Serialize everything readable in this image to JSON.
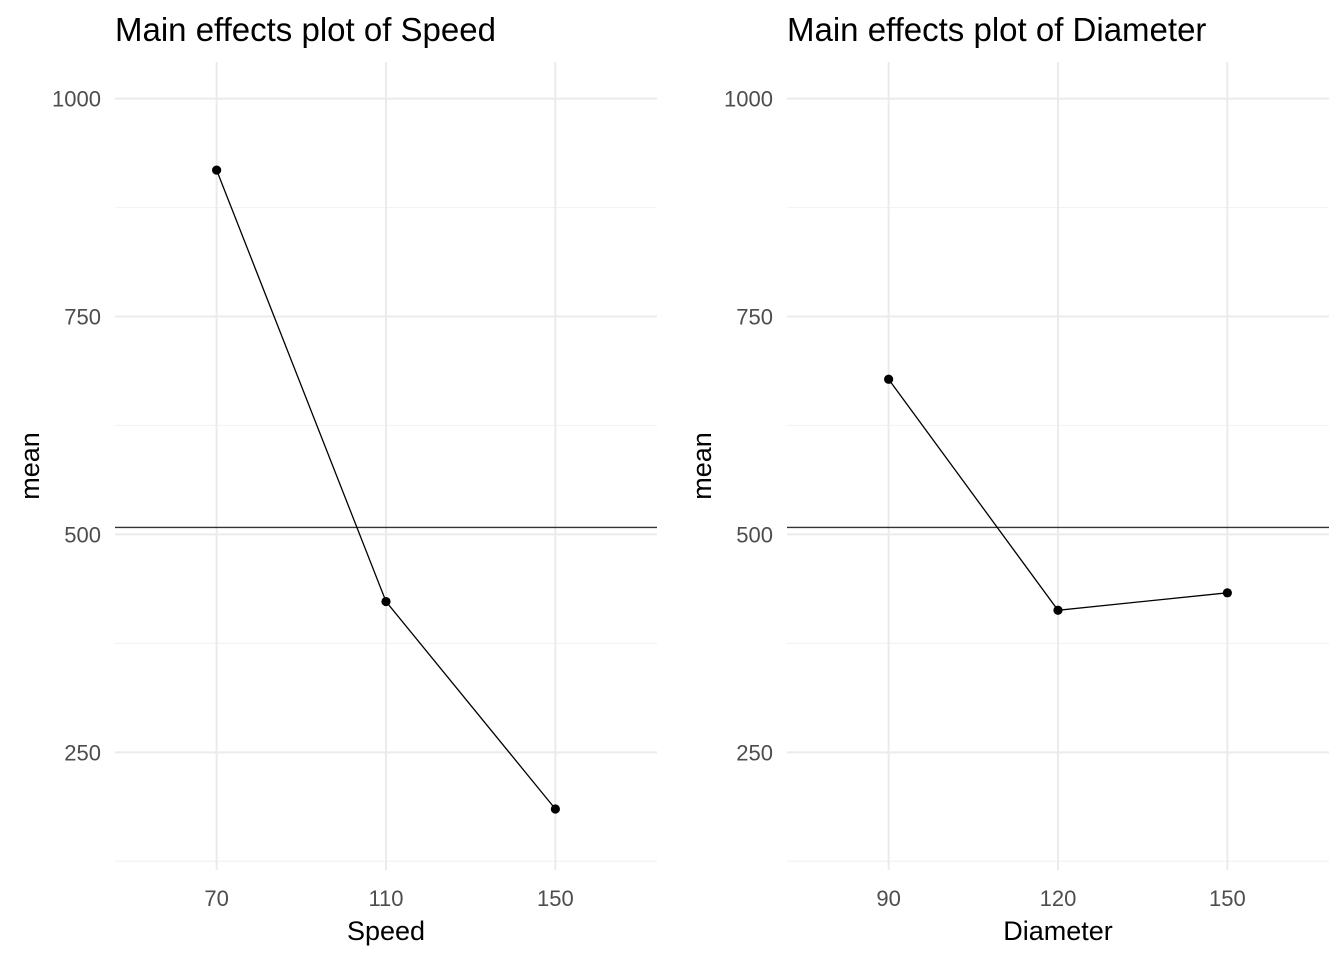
{
  "chart_data": [
    {
      "type": "line",
      "title": "Main effects plot of Speed",
      "xlabel": "Speed",
      "ylabel": "mean",
      "categories": [
        "70",
        "110",
        "150"
      ],
      "values": [
        918,
        423,
        185
      ],
      "reference_line": 508,
      "ylim": [
        115,
        1042
      ],
      "yticks": [
        250,
        500,
        750,
        1000
      ],
      "grid": true,
      "legend": "none"
    },
    {
      "type": "line",
      "title": "Main effects plot of Diameter",
      "xlabel": "Diameter",
      "ylabel": "mean",
      "categories": [
        "90",
        "120",
        "150"
      ],
      "values": [
        678,
        413,
        433
      ],
      "reference_line": 508,
      "ylim": [
        115,
        1042
      ],
      "yticks": [
        250,
        500,
        750,
        1000
      ],
      "grid": true,
      "legend": "none"
    }
  ]
}
